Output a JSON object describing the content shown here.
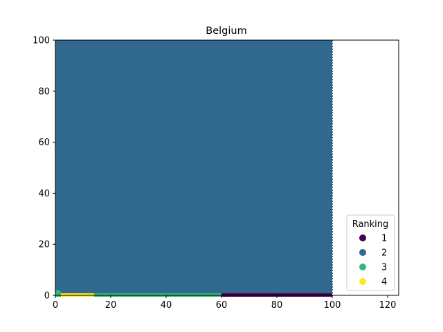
{
  "chart_data": {
    "type": "scatter",
    "title": "Belgium",
    "xlabel": "",
    "ylabel": "",
    "xlim": [
      0,
      124
    ],
    "ylim": [
      0,
      100
    ],
    "xticks": [
      "0",
      "20",
      "40",
      "60",
      "80",
      "100",
      "120"
    ],
    "yticks": [
      "0",
      "20",
      "40",
      "60",
      "80",
      "100"
    ],
    "grid": false,
    "legend": {
      "title": "Ranking",
      "placement": "lower-right",
      "entries": [
        {
          "label": "1",
          "color": "#440154"
        },
        {
          "label": "2",
          "color": "#31688e"
        },
        {
          "label": "3",
          "color": "#35b779"
        },
        {
          "label": "4",
          "color": "#fde725"
        }
      ]
    },
    "series": [
      {
        "name": "2",
        "color": "#31688e",
        "region": {
          "x": [
            0,
            100
          ],
          "y": [
            0,
            100
          ]
        }
      },
      {
        "name": "1",
        "color": "#440154",
        "x_range": [
          60,
          100
        ],
        "y": 0
      },
      {
        "name": "3",
        "color": "#35b779",
        "x_range": [
          0,
          60
        ],
        "y": 0,
        "points": [
          [
            1,
            1
          ]
        ]
      },
      {
        "name": "4",
        "color": "#fde725",
        "x_range": [
          2,
          14
        ],
        "y": 0
      }
    ]
  }
}
